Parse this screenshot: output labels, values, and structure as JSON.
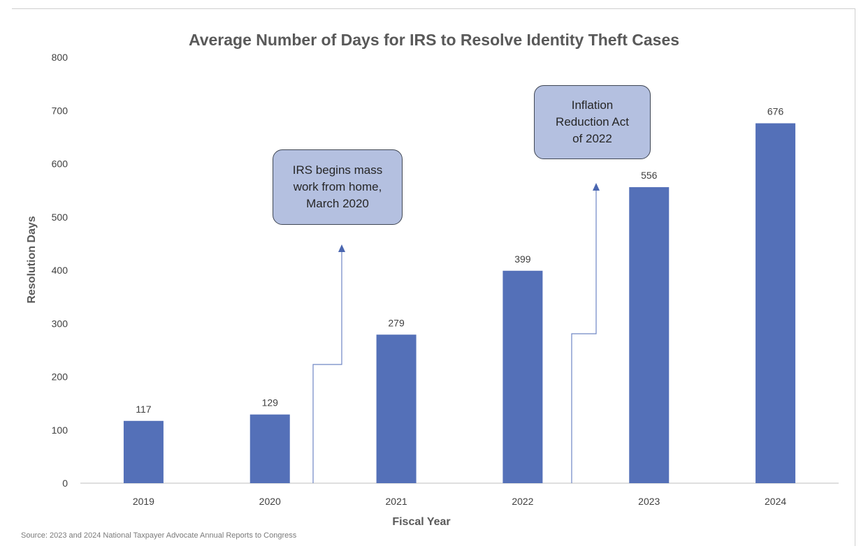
{
  "chart_data": {
    "type": "bar",
    "title": "Average Number of Days for IRS to Resolve Identity Theft Cases",
    "xlabel": "Fiscal Year",
    "ylabel": "Resolution Days",
    "categories": [
      "2019",
      "2020",
      "2021",
      "2022",
      "2023",
      "2024"
    ],
    "values": [
      117,
      129,
      279,
      399,
      556,
      676
    ],
    "data_labels": [
      "117",
      "129",
      "279",
      "399",
      "556",
      "676"
    ],
    "ylim": [
      0,
      800
    ],
    "yticks": [
      "0",
      "100",
      "200",
      "300",
      "400",
      "500",
      "600",
      "700",
      "800"
    ],
    "grid": false,
    "bar_color": "#5470b8",
    "annotations": [
      {
        "text": "IRS begins mass\nwork from home,\nMarch 2020",
        "between": [
          "2020",
          "2021"
        ]
      },
      {
        "text": "Inflation\nReduction Act\nof 2022",
        "between": [
          "2022",
          "2023"
        ]
      }
    ]
  },
  "source": "Source: 2023 and 2024 National  Taxpayer Advocate Annual Reports  to Congress"
}
